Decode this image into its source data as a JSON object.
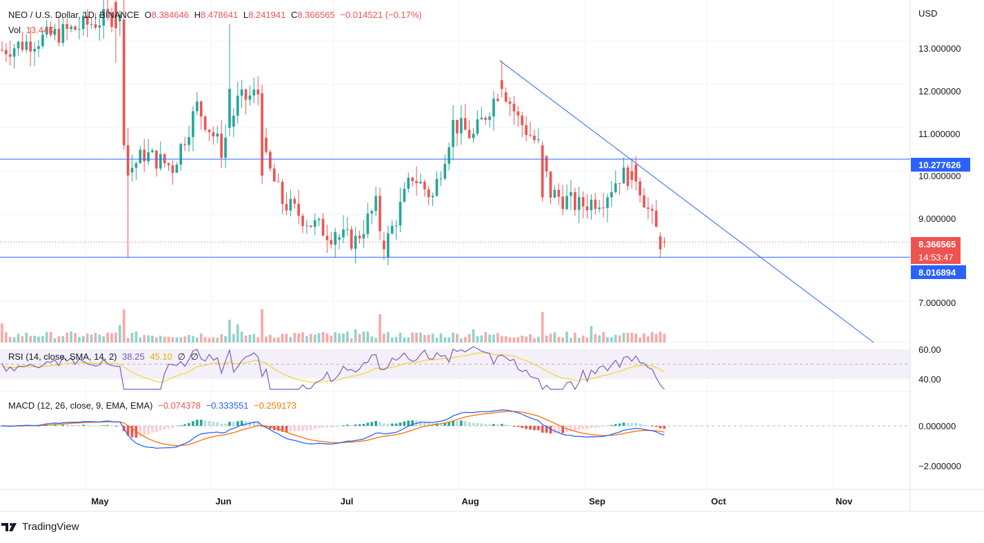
{
  "header": {
    "symbol": "NEO / U.S. Dollar, 1D, BINANCE",
    "open_label": "O",
    "open": "8.384646",
    "high_label": "H",
    "high": "8.478641",
    "low_label": "L",
    "low": "8.241941",
    "close_label": "C",
    "close": "8.366565",
    "change": "−0.014521 (−0.17%)",
    "vol_label": "Vol",
    "vol": "13.44K"
  },
  "price_axis": {
    "currency": "USD",
    "ticks": [
      "13.000000",
      "12.000000",
      "11.000000",
      "10.000000",
      "9.000000",
      "7.000000"
    ],
    "tick_values": [
      13,
      12,
      11,
      10,
      9,
      7
    ],
    "ylim": [
      6.05,
      13.95
    ],
    "resistance": "10.277626",
    "support": "8.016894",
    "last_price": "8.366565",
    "countdown": "14:53:47"
  },
  "time_axis": {
    "labels": [
      "May",
      "Jun",
      "Jul",
      "Aug",
      "Sep",
      "Oct",
      "Nov"
    ]
  },
  "rsi": {
    "title": "RSI (14, close, SMA, 14, 2)",
    "value": "38.25",
    "sma": "45.10",
    "v3": "∅",
    "v4": "∅",
    "ticks": [
      "60.00",
      "40.00"
    ]
  },
  "macd": {
    "title": "MACD (12, 26, close, 9, EMA, EMA)",
    "hist": "−0.074378",
    "macd": "−0.333551",
    "signal": "−0.259173",
    "ticks": [
      "0.000000",
      "−2.000000"
    ]
  },
  "brand": "TradingView",
  "colors": {
    "up": "#26a69a",
    "down": "#ef5350",
    "trendline": "#2962ff",
    "rsi_line": "#7e57c2",
    "rsi_sma": "#f5d327",
    "macd_line": "#2962ff",
    "signal_line": "#ff6d00"
  },
  "chart_data": {
    "type": "candlestick",
    "title": "NEO / U.S. Dollar, 1D, BINANCE",
    "x_range": [
      "2022-04-10",
      "2022-11-20"
    ],
    "candles_sample": [
      {
        "date": "2022-05-08",
        "o": 13.9,
        "h": 13.95,
        "l": 12.5,
        "c": 13.3
      },
      {
        "date": "2022-05-10",
        "o": 13.5,
        "h": 13.95,
        "l": 10.5,
        "c": 10.6
      },
      {
        "date": "2022-05-11",
        "o": 10.6,
        "h": 11.0,
        "l": 8.0,
        "c": 9.9
      },
      {
        "date": "2022-06-05",
        "o": 11.0,
        "h": 13.4,
        "l": 10.8,
        "c": 11.9
      },
      {
        "date": "2022-06-13",
        "o": 11.8,
        "h": 12.0,
        "l": 9.7,
        "c": 9.9
      },
      {
        "date": "2022-07-01",
        "o": 8.3,
        "h": 8.7,
        "l": 8.0,
        "c": 8.6
      },
      {
        "date": "2022-07-13",
        "o": 8.4,
        "h": 8.6,
        "l": 7.95,
        "c": 8.2
      },
      {
        "date": "2022-08-11",
        "o": 12.1,
        "h": 12.55,
        "l": 11.7,
        "c": 11.9
      },
      {
        "date": "2022-08-21",
        "o": 10.6,
        "h": 10.7,
        "l": 9.3,
        "c": 9.4
      },
      {
        "date": "2022-09-12",
        "o": 10.0,
        "h": 10.3,
        "l": 9.6,
        "c": 9.8
      },
      {
        "date": "2022-09-19",
        "o": 8.5,
        "h": 8.6,
        "l": 8.0,
        "c": 8.2
      },
      {
        "date": "2022-09-20",
        "o": 8.3846,
        "h": 8.4786,
        "l": 8.2419,
        "c": 8.3666
      }
    ],
    "horizontal_lines": [
      10.277626,
      8.016894
    ],
    "trendline": {
      "from": {
        "date": "2022-08-11",
        "price": 12.55
      },
      "to": {
        "date": "2022-11-11",
        "price": 6.05
      }
    }
  }
}
